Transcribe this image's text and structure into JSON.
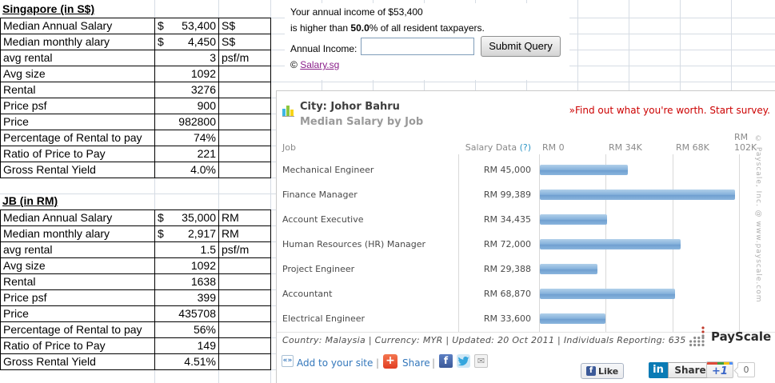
{
  "spreadsheet": {
    "tables": [
      {
        "title": "Singapore (in S$)",
        "rows": [
          {
            "label": "Median Annual Salary",
            "currency": "$",
            "value": "53,400",
            "unit": "S$"
          },
          {
            "label": "Median monthly alary",
            "currency": "$",
            "value": "4,450",
            "unit": "S$"
          },
          {
            "label": "avg rental",
            "value": "3",
            "unit": "psf/m"
          },
          {
            "label": "Avg size",
            "value": "1092",
            "unit": ""
          },
          {
            "label": "Rental",
            "value": "3276",
            "unit": ""
          },
          {
            "label": "Price psf",
            "value": "900",
            "unit": ""
          },
          {
            "label": "Price",
            "value": "982800",
            "unit": ""
          },
          {
            "label": "Percentage of Rental to pay",
            "value": "74%",
            "unit": ""
          },
          {
            "label": "Ratio of Price to Pay",
            "value": "221",
            "unit": ""
          },
          {
            "label": "Gross Rental Yield",
            "value": "4.0%",
            "unit": ""
          }
        ]
      },
      {
        "title": "JB (in RM)",
        "rows": [
          {
            "label": "Median Annual Salary",
            "currency": "$",
            "value": "35,000",
            "unit": "RM"
          },
          {
            "label": "Median monthly alary",
            "currency": "$",
            "value": "2,917",
            "unit": "RM"
          },
          {
            "label": "avg rental",
            "value": "1.5",
            "unit": "psf/m"
          },
          {
            "label": "Avg size",
            "value": "1092",
            "unit": ""
          },
          {
            "label": "Rental",
            "value": "1638",
            "unit": ""
          },
          {
            "label": "Price psf",
            "value": "399",
            "unit": ""
          },
          {
            "label": "Price",
            "value": "435708",
            "unit": ""
          },
          {
            "label": "Percentage of Rental to pay",
            "value": "56%",
            "unit": ""
          },
          {
            "label": "Ratio of Price to Pay",
            "value": "149",
            "unit": ""
          },
          {
            "label": "Gross Rental Yield",
            "value": "4.51%",
            "unit": ""
          }
        ]
      }
    ]
  },
  "salary_widget": {
    "line1": "Your annual income of $53,400",
    "line2_prefix": "is higher than ",
    "line2_bold": "50.0",
    "line2_suffix": "% of all resident taxpayers.",
    "input_label": "Annual Income:",
    "input_value": "",
    "submit_label": "Submit Query",
    "copyright_prefix": "© ",
    "link_label": "Salary.sg"
  },
  "payscale": {
    "city_label": "City: Johor Bahru",
    "subtitle": "Median Salary by Job",
    "survey_link": "»Find out what you're worth. Start survey.",
    "col_job": "Job",
    "col_salary": "Salary Data ",
    "col_salary_help": "(?)",
    "footer": "Country: Malaysia | Currency: MYR | Updated: 20 Oct 2011 | Individuals Reporting: 635",
    "vertical_copyright": "© Payscale, Inc. @ www.payscale.com",
    "logo_text": "PayScale"
  },
  "chart_data": {
    "type": "bar",
    "orientation": "horizontal",
    "title": "City: Johor Bahru — Median Salary by Job",
    "categories": [
      "Mechanical Engineer",
      "Finance Manager",
      "Account Executive",
      "Human Resources (HR) Manager",
      "Project Engineer",
      "Accountant",
      "Electrical Engineer"
    ],
    "values": [
      45000,
      99389,
      34435,
      72000,
      29388,
      68870,
      33600
    ],
    "value_labels": [
      "RM 45,000",
      "RM 99,389",
      "RM 34,435",
      "RM 72,000",
      "RM 29,388",
      "RM 68,870",
      "RM 33,600"
    ],
    "xlim": [
      0,
      102000
    ],
    "ticks": [
      {
        "label": "RM 0",
        "value": 0
      },
      {
        "label": "RM 34K",
        "value": 34000
      },
      {
        "label": "RM 68K",
        "value": 68000
      },
      {
        "label": "RM 102K",
        "value": 102000
      }
    ],
    "grid": true,
    "legend": "none",
    "currency": "MYR",
    "bar_color": "#7fadd9"
  },
  "share_bar": {
    "embed_icon_glyph": "«»",
    "add_label": "Add to your site",
    "separator": "|",
    "addthis_glyph": "+",
    "share_label": "Share",
    "fb_glyph": "f",
    "mail_glyph": "✉",
    "like_glyph": "f",
    "like_label": "Like",
    "linkedin_glyph": "in",
    "linkedin_share_label": "Share",
    "plus_one_label": "+1",
    "plus_one_count": "0"
  },
  "colors": {
    "bar_blue": "#7fadd9",
    "survey_red": "#cc0000",
    "link_blue": "#3377bb",
    "visited_purple": "#8a1f8a",
    "excel_gridline": "#d6dce4",
    "widget_border": "#c9c9c9",
    "muted_gray": "#9a9a9a"
  }
}
